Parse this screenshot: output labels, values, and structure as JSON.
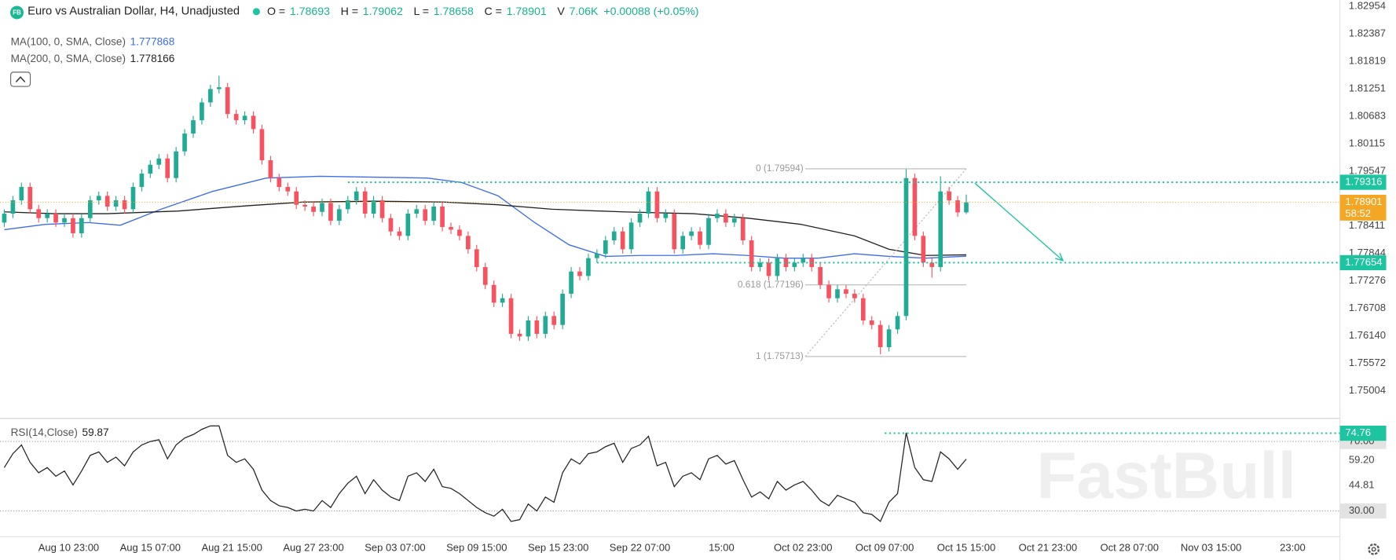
{
  "watermark": "FastBull",
  "chart_data": [
    {
      "type": "candlestick",
      "symbol_badge": "FB",
      "title": "Euro vs Australian Dollar, H4, Unadjusted",
      "stats": [
        {
          "label": "O =",
          "value": 1.78693
        },
        {
          "label": "H =",
          "value": 1.79062
        },
        {
          "label": "L =",
          "value": 1.78658
        },
        {
          "label": "C =",
          "value": 1.78901
        },
        {
          "label": "V",
          "value": "7.06K"
        }
      ],
      "change": "+0.00088 (+0.05%)",
      "up_color": "#22ab94",
      "down_color": "#f7525f",
      "xlim": [
        0,
        624
      ],
      "ylim": [
        1.74434,
        1.83083
      ],
      "yticks": [
        1.75004,
        1.75572,
        {
          "value": 1.7614,
          "label": "1.76140"
        },
        1.76708,
        1.77276,
        1.77844,
        1.78411,
        1.79547,
        1.80115,
        1.80683,
        1.81251,
        1.81819,
        1.82387,
        1.82954
      ],
      "x": [
        2,
        6,
        10,
        14,
        18,
        22,
        26,
        30,
        34,
        38,
        42,
        46,
        50,
        54,
        58,
        62,
        66,
        70,
        74,
        78,
        82,
        86,
        90,
        94,
        98,
        102,
        106,
        110,
        114,
        118,
        122,
        126,
        130,
        134,
        138,
        142,
        146,
        150,
        154,
        158,
        162,
        166,
        170,
        174,
        178,
        182,
        186,
        190,
        194,
        198,
        202,
        206,
        210,
        214,
        218,
        222,
        226,
        230,
        234,
        238,
        242,
        246,
        250,
        254,
        258,
        262,
        266,
        270,
        274,
        278,
        282,
        286,
        290,
        294,
        298,
        302,
        306,
        310,
        314,
        318,
        322,
        326,
        330,
        334,
        338,
        342,
        346,
        350,
        354,
        358,
        362,
        366,
        370,
        374,
        378,
        382,
        386,
        390,
        394,
        398,
        402,
        406,
        410,
        414,
        418,
        422,
        426,
        430,
        434,
        438,
        442,
        446,
        450
      ],
      "open": [
        1.78483,
        1.78667,
        1.78943,
        1.79219,
        1.78759,
        1.78575,
        1.78667,
        1.78483,
        1.78575,
        1.78262,
        1.78575,
        1.78943,
        1.79035,
        1.78814,
        1.78943,
        1.78759,
        1.79219,
        1.79495,
        1.79679,
        1.79808,
        1.79403,
        1.79955,
        1.80323,
        1.80599,
        1.80967,
        1.81243,
        1.8128,
        1.80728,
        1.80599,
        1.80691,
        1.80415,
        1.79771,
        1.79403,
        1.79219,
        1.79127,
        1.78851,
        1.78814,
        1.78704,
        1.78888,
        1.7852,
        1.78759,
        1.78943,
        1.79127,
        1.78667,
        1.78943,
        1.78575,
        1.78299,
        1.78207,
        1.78667,
        1.78759,
        1.7852,
        1.78814,
        1.78391,
        1.78336,
        1.78207,
        1.77931,
        1.77563,
        1.77195,
        1.76827,
        1.76919,
        1.76183,
        1.76128,
        1.76459,
        1.76183,
        1.76551,
        1.76367,
        1.77011,
        1.77471,
        1.77379,
        1.77747,
        1.77839,
        1.78115,
        1.78299,
        1.77931,
        1.78483,
        1.78667,
        1.79127,
        1.78575,
        1.78667,
        1.77931,
        1.78207,
        1.78299,
        1.78023,
        1.78575,
        1.78667,
        1.78483,
        1.78575,
        1.78115,
        1.77563,
        1.77655,
        1.77379,
        1.77747,
        1.77563,
        1.77655,
        1.77747,
        1.77563,
        1.77195,
        1.76919,
        1.77103,
        1.77011,
        1.76919,
        1.76459,
        1.76367,
        1.75907,
        1.76275,
        1.76551,
        1.79403,
        1.78207,
        1.77655,
        1.77563,
        1.79127,
        1.78943,
        1.78693
      ],
      "high": [
        1.78757,
        1.79033,
        1.79309,
        1.79309,
        1.78849,
        1.78757,
        1.78757,
        1.78665,
        1.78665,
        1.78665,
        1.79033,
        1.79125,
        1.79125,
        1.79033,
        1.79033,
        1.79309,
        1.79585,
        1.79769,
        1.79898,
        1.79898,
        1.80045,
        1.80413,
        1.80689,
        1.81057,
        1.81333,
        1.81519,
        1.8137,
        1.80818,
        1.80781,
        1.80781,
        1.80505,
        1.79861,
        1.79493,
        1.79309,
        1.79217,
        1.78941,
        1.78904,
        1.78978,
        1.78978,
        1.78849,
        1.79033,
        1.79217,
        1.79217,
        1.79033,
        1.79033,
        1.78665,
        1.78389,
        1.78757,
        1.78849,
        1.78849,
        1.78904,
        1.78904,
        1.78481,
        1.78426,
        1.78297,
        1.78021,
        1.77653,
        1.77285,
        1.77009,
        1.77009,
        1.76273,
        1.76549,
        1.76549,
        1.76641,
        1.76641,
        1.77101,
        1.77561,
        1.77561,
        1.77837,
        1.77929,
        1.78205,
        1.78389,
        1.78389,
        1.78573,
        1.78757,
        1.79217,
        1.79217,
        1.78757,
        1.78757,
        1.78297,
        1.78389,
        1.78389,
        1.78665,
        1.78757,
        1.78757,
        1.78665,
        1.78665,
        1.78205,
        1.77745,
        1.77745,
        1.77837,
        1.77837,
        1.77745,
        1.77837,
        1.77837,
        1.77653,
        1.77285,
        1.77193,
        1.77193,
        1.77101,
        1.77009,
        1.76549,
        1.76457,
        1.76365,
        1.76641,
        1.79587,
        1.79493,
        1.78297,
        1.77745,
        1.7944,
        1.79217,
        1.79033,
        1.79062
      ],
      "low": [
        1.78393,
        1.78577,
        1.78853,
        1.78669,
        1.78485,
        1.78485,
        1.78393,
        1.78393,
        1.78172,
        1.78172,
        1.78485,
        1.78853,
        1.78724,
        1.78724,
        1.78669,
        1.78669,
        1.79129,
        1.79405,
        1.79589,
        1.79313,
        1.79313,
        1.79865,
        1.80233,
        1.80509,
        1.80877,
        1.81153,
        1.80638,
        1.80509,
        1.80509,
        1.80325,
        1.79681,
        1.79313,
        1.79129,
        1.79037,
        1.78761,
        1.78724,
        1.78614,
        1.78614,
        1.7843,
        1.7843,
        1.78669,
        1.78853,
        1.78577,
        1.78577,
        1.78485,
        1.78209,
        1.78117,
        1.78117,
        1.78577,
        1.7843,
        1.7843,
        1.78301,
        1.78246,
        1.78117,
        1.77841,
        1.77473,
        1.77105,
        1.76737,
        1.76737,
        1.76093,
        1.76038,
        1.76038,
        1.76093,
        1.76093,
        1.76277,
        1.76277,
        1.76921,
        1.77289,
        1.77289,
        1.77657,
        1.77749,
        1.78025,
        1.77841,
        1.77841,
        1.78393,
        1.78577,
        1.78485,
        1.78485,
        1.77841,
        1.77841,
        1.78117,
        1.77933,
        1.77933,
        1.78485,
        1.78393,
        1.78393,
        1.78025,
        1.77473,
        1.77473,
        1.77289,
        1.77289,
        1.77473,
        1.77473,
        1.77565,
        1.77473,
        1.77105,
        1.76829,
        1.76829,
        1.76921,
        1.76829,
        1.76369,
        1.76277,
        1.7576,
        1.75817,
        1.76185,
        1.76461,
        1.78117,
        1.77565,
        1.77342,
        1.77473,
        1.78853,
        1.78603,
        1.78658
      ],
      "close": [
        1.78667,
        1.78943,
        1.79219,
        1.78759,
        1.78575,
        1.78667,
        1.78483,
        1.78575,
        1.78262,
        1.78575,
        1.78943,
        1.79035,
        1.78814,
        1.78943,
        1.78759,
        1.79219,
        1.79495,
        1.79679,
        1.79808,
        1.79403,
        1.79955,
        1.80323,
        1.80599,
        1.80967,
        1.81243,
        1.8128,
        1.80728,
        1.80599,
        1.80691,
        1.80415,
        1.79771,
        1.79403,
        1.79219,
        1.79127,
        1.78851,
        1.78814,
        1.78704,
        1.78888,
        1.7852,
        1.78759,
        1.78943,
        1.79127,
        1.78667,
        1.78943,
        1.78575,
        1.78299,
        1.78207,
        1.78667,
        1.78759,
        1.7852,
        1.78814,
        1.78391,
        1.78336,
        1.78207,
        1.77931,
        1.77563,
        1.77195,
        1.76827,
        1.76919,
        1.76183,
        1.76128,
        1.76459,
        1.76183,
        1.76551,
        1.76367,
        1.77011,
        1.77471,
        1.77379,
        1.77747,
        1.77839,
        1.78115,
        1.78299,
        1.77931,
        1.78483,
        1.78667,
        1.79127,
        1.78575,
        1.78667,
        1.77931,
        1.78207,
        1.78299,
        1.78023,
        1.78575,
        1.78667,
        1.78483,
        1.78575,
        1.78115,
        1.77563,
        1.77655,
        1.77379,
        1.77747,
        1.77563,
        1.77655,
        1.77747,
        1.77563,
        1.77195,
        1.76919,
        1.77103,
        1.77011,
        1.76919,
        1.76459,
        1.76367,
        1.75907,
        1.76275,
        1.76551,
        1.79403,
        1.78207,
        1.77655,
        1.77563,
        1.79127,
        1.78943,
        1.78693,
        1.78901
      ],
      "series": [
        {
          "name": "MA(100, 0, SMA, Close)",
          "value": 1.777868,
          "color": "#3d6ee8",
          "x": [
            2,
            21,
            41,
            56,
            75,
            99,
            124,
            149,
            174,
            199,
            215,
            232,
            249,
            265,
            282,
            298,
            315,
            332,
            348,
            365,
            381,
            398,
            414,
            431,
            450
          ],
          "values": [
            1.78336,
            1.78446,
            1.78483,
            1.78428,
            1.78759,
            1.79127,
            1.79403,
            1.7944,
            1.79422,
            1.79403,
            1.79311,
            1.79035,
            1.78483,
            1.78023,
            1.77784,
            1.77803,
            1.77803,
            1.77839,
            1.77803,
            1.77747,
            1.77747,
            1.77839,
            1.77784,
            1.77747,
            1.777868
          ]
        },
        {
          "name": "MA(200, 0, SMA, Close)",
          "value": 1.778166,
          "color": "#222222",
          "x": [
            2,
            25,
            50,
            83,
            116,
            141,
            174,
            207,
            232,
            257,
            290,
            323,
            348,
            373,
            398,
            414,
            431,
            450
          ],
          "values": [
            1.78704,
            1.78667,
            1.78667,
            1.78722,
            1.78833,
            1.78906,
            1.78925,
            1.78906,
            1.78851,
            1.78759,
            1.78704,
            1.78667,
            1.78575,
            1.78446,
            1.78207,
            1.77931,
            1.77803,
            1.778166
          ]
        }
      ],
      "levels": [
        {
          "value": 1.79316,
          "x_start": 162,
          "color": "#1dc4a0"
        },
        {
          "value": 1.77654,
          "x_start": 278,
          "color": "#1dc4a0"
        }
      ],
      "fib": {
        "x": [
          375,
          450
        ],
        "prices": [
          1.79594,
          1.77196,
          1.75713
        ],
        "labels": [
          "0 (1.79594)",
          "0.618 (1.77196)",
          "1 (1.75713)"
        ],
        "color": "#b8b8b8"
      },
      "arrow": {
        "x": [
          454,
          495
        ],
        "y": [
          1.79298,
          1.77697
        ],
        "color": "#1dc4a0"
      },
      "last_price": {
        "value": 1.78901,
        "countdown": "58:52",
        "color": "#f5a623"
      }
    },
    {
      "type": "line",
      "name": "RSI(14,Close)",
      "current": 59.87,
      "color": "#222222",
      "xlim": [
        0,
        624
      ],
      "ylim": [
        15.14,
        82.77
      ],
      "yticks": [
        {
          "value": 30,
          "label": "30.00"
        },
        44.81,
        {
          "value": 59.2,
          "label": "59.20"
        },
        {
          "value": 70,
          "label": "70.00"
        }
      ],
      "bands": [
        30,
        70
      ],
      "level": {
        "value": 74.76,
        "x_start": 412,
        "color": "#1dc4a0"
      },
      "xticks": [
        {
          "value": 32,
          "label": "Aug 10 23:00"
        },
        {
          "value": 70,
          "label": "Aug 15 07:00"
        },
        {
          "value": 108,
          "label": "Aug 21 15:00"
        },
        {
          "value": 146,
          "label": "Aug 27 23:00"
        },
        {
          "value": 184,
          "label": "Sep 03 07:00"
        },
        {
          "value": 222,
          "label": "Sep 09 15:00"
        },
        {
          "value": 260,
          "label": "Sep 15 23:00"
        },
        {
          "value": 298,
          "label": "Sep 22 07:00"
        },
        {
          "value": 336,
          "label": "15:00"
        },
        {
          "value": 374,
          "label": "Oct 02 23:00"
        },
        {
          "value": 412,
          "label": "Oct 09 07:00"
        },
        {
          "value": 450,
          "label": "Oct 15 15:00"
        },
        {
          "value": 488,
          "label": "Oct 21 23:00"
        },
        {
          "value": 526,
          "label": "Oct 28 07:00"
        },
        {
          "value": 564,
          "label": "Nov 03 15:00"
        },
        {
          "value": 602,
          "label": "23:00"
        }
      ],
      "x": [
        2,
        6,
        10,
        14,
        18,
        22,
        26,
        30,
        34,
        38,
        42,
        46,
        50,
        54,
        58,
        62,
        66,
        70,
        74,
        78,
        82,
        86,
        90,
        94,
        98,
        102,
        106,
        110,
        114,
        118,
        122,
        126,
        130,
        134,
        138,
        142,
        146,
        150,
        154,
        158,
        162,
        166,
        170,
        174,
        178,
        182,
        186,
        190,
        194,
        198,
        202,
        206,
        210,
        214,
        218,
        222,
        226,
        230,
        234,
        238,
        242,
        246,
        250,
        254,
        258,
        262,
        266,
        270,
        274,
        278,
        282,
        286,
        290,
        294,
        298,
        302,
        306,
        310,
        314,
        318,
        322,
        326,
        330,
        334,
        338,
        342,
        346,
        350,
        354,
        358,
        362,
        366,
        370,
        374,
        378,
        382,
        386,
        390,
        394,
        398,
        402,
        406,
        410,
        414,
        418,
        422,
        426,
        430,
        434,
        438,
        442,
        446,
        450
      ],
      "values": [
        55,
        63,
        68,
        58,
        52,
        55,
        50,
        53,
        45,
        53,
        62,
        64,
        58,
        61,
        56,
        64,
        68,
        70,
        71,
        60,
        68,
        72,
        74,
        77,
        79,
        79,
        62,
        58,
        60,
        54,
        42,
        36,
        33,
        32,
        30,
        31,
        30,
        36,
        32,
        40,
        46,
        50,
        40,
        48,
        42,
        38,
        36,
        50,
        52,
        47,
        54,
        44,
        43,
        40,
        36,
        32,
        29,
        27,
        31,
        24,
        25,
        34,
        30,
        38,
        35,
        52,
        60,
        57,
        63,
        64,
        67,
        69,
        58,
        66,
        68,
        73,
        56,
        58,
        44,
        50,
        52,
        48,
        60,
        62,
        57,
        59,
        48,
        38,
        41,
        37,
        47,
        42,
        45,
        47,
        42,
        36,
        33,
        39,
        37,
        35,
        29,
        28,
        24,
        35,
        40,
        75,
        55,
        48,
        47,
        64,
        60,
        54,
        59.87
      ]
    }
  ]
}
